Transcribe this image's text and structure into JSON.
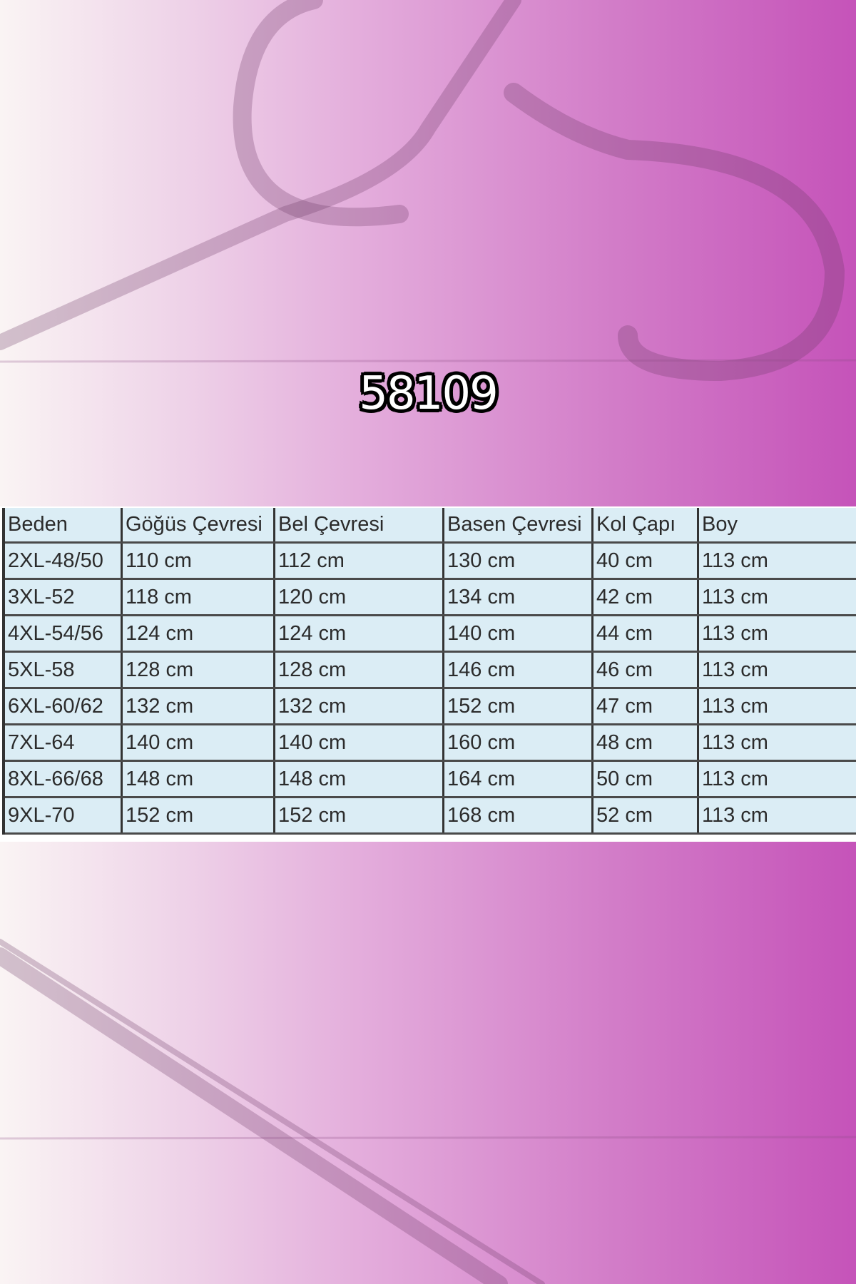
{
  "product_code": "58109",
  "colors": {
    "background_left": "#faf4f4",
    "background_right": "#c553b9",
    "table_fill": "#dbedf5"
  },
  "size_table": {
    "headers": [
      "Beden",
      "Göğüs Çevresi",
      "Bel Çevresi",
      "Basen Çevresi",
      "Kol Çapı",
      "Boy"
    ],
    "rows": [
      [
        "2XL-48/50",
        "110 cm",
        "112 cm",
        "130 cm",
        "40 cm",
        "113 cm"
      ],
      [
        "3XL-52",
        "118 cm",
        "120 cm",
        "134 cm",
        "42 cm",
        "113 cm"
      ],
      [
        "4XL-54/56",
        "124 cm",
        "124 cm",
        "140 cm",
        "44 cm",
        "113 cm"
      ],
      [
        "5XL-58",
        "128 cm",
        "128 cm",
        "146 cm",
        "46 cm",
        "113 cm"
      ],
      [
        "6XL-60/62",
        "132 cm",
        "132 cm",
        "152 cm",
        "47 cm",
        "113 cm"
      ],
      [
        "7XL-64",
        "140 cm",
        "140 cm",
        "160 cm",
        "48 cm",
        "113 cm"
      ],
      [
        "8XL-66/68",
        "148 cm",
        "148 cm",
        "164 cm",
        "50 cm",
        "113 cm"
      ],
      [
        "9XL-70",
        "152 cm",
        "152 cm",
        "168 cm",
        "52 cm",
        "113 cm"
      ]
    ]
  }
}
